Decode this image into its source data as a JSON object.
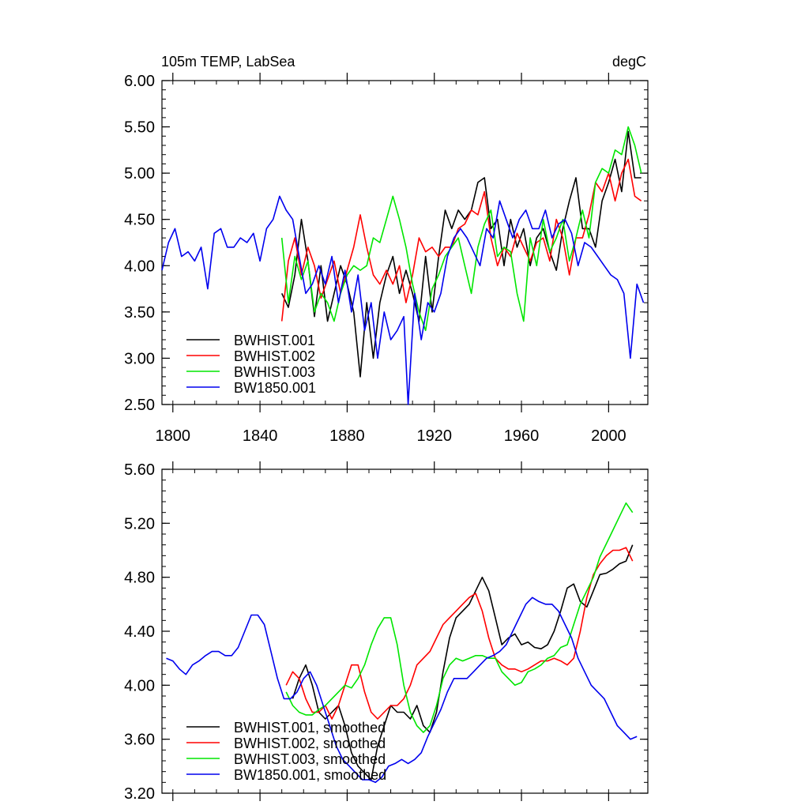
{
  "figure_title": "105m TEMP, LabSea",
  "units": "degC",
  "colors": {
    "BWHIST.001": "#000000",
    "BWHIST.002": "#ff0000",
    "BWHIST.003": "#00e600",
    "BW1850.001": "#0000ee"
  },
  "chart_data": [
    {
      "type": "line",
      "title": "105m TEMP, LabSea",
      "units": "degC",
      "xlabel": "",
      "ylabel": "",
      "xlim": [
        1795,
        2018
      ],
      "ylim": [
        2.5,
        6.0
      ],
      "x_ticks": [
        1800,
        1840,
        1880,
        1920,
        1960,
        2000
      ],
      "x_tick_labels": [
        "1800",
        "1840",
        "1880",
        "1920",
        "1960",
        "2000"
      ],
      "y_ticks": [
        2.5,
        3.0,
        3.5,
        4.0,
        4.5,
        5.0,
        5.5,
        6.0
      ],
      "y_tick_labels": [
        "2.50",
        "3.00",
        "3.50",
        "4.00",
        "4.50",
        "5.00",
        "5.50",
        "6.00"
      ],
      "legend_position": "bottom-left",
      "series": [
        {
          "name": "BWHIST.001",
          "label": "BWHIST.001",
          "x": [
            1850,
            1853,
            1856,
            1859,
            1862,
            1865,
            1868,
            1871,
            1874,
            1877,
            1880,
            1883,
            1886,
            1889,
            1892,
            1895,
            1898,
            1901,
            1904,
            1907,
            1910,
            1913,
            1916,
            1919,
            1922,
            1925,
            1928,
            1931,
            1934,
            1937,
            1940,
            1943,
            1946,
            1949,
            1952,
            1955,
            1958,
            1961,
            1964,
            1967,
            1970,
            1973,
            1976,
            1979,
            1982,
            1985,
            1988,
            1991,
            1994,
            1997,
            2000,
            2003,
            2006,
            2009,
            2012,
            2015
          ],
          "y": [
            3.7,
            3.55,
            3.9,
            4.5,
            4.05,
            3.45,
            4.0,
            3.4,
            3.7,
            4.0,
            3.8,
            3.5,
            2.8,
            3.6,
            3.0,
            3.6,
            3.9,
            4.1,
            3.7,
            3.95,
            3.7,
            3.4,
            4.1,
            3.5,
            4.1,
            4.6,
            4.4,
            4.6,
            4.5,
            4.6,
            4.9,
            4.95,
            4.4,
            4.5,
            4.0,
            4.5,
            4.2,
            4.4,
            4.0,
            4.3,
            4.4,
            4.15,
            3.95,
            4.4,
            4.7,
            4.95,
            4.4,
            4.4,
            4.2,
            4.7,
            4.9,
            5.15,
            4.8,
            5.45,
            4.95,
            4.95
          ]
        },
        {
          "name": "BWHIST.002",
          "label": "BWHIST.002",
          "x": [
            1850,
            1853,
            1856,
            1859,
            1862,
            1865,
            1868,
            1871,
            1874,
            1877,
            1880,
            1883,
            1886,
            1889,
            1892,
            1895,
            1898,
            1901,
            1904,
            1907,
            1910,
            1913,
            1916,
            1919,
            1922,
            1925,
            1928,
            1931,
            1934,
            1937,
            1940,
            1943,
            1946,
            1949,
            1952,
            1955,
            1958,
            1961,
            1964,
            1967,
            1970,
            1973,
            1976,
            1979,
            1982,
            1985,
            1988,
            1991,
            1994,
            1997,
            2000,
            2003,
            2006,
            2009,
            2012,
            2015
          ],
          "y": [
            3.4,
            4.05,
            4.3,
            3.9,
            4.2,
            4.0,
            3.65,
            3.85,
            4.05,
            3.7,
            3.95,
            4.2,
            4.55,
            4.2,
            3.9,
            3.8,
            3.95,
            3.8,
            4.0,
            3.6,
            3.9,
            4.3,
            4.15,
            4.2,
            4.1,
            4.2,
            4.2,
            4.4,
            4.45,
            4.6,
            4.55,
            4.8,
            4.3,
            4.0,
            4.2,
            4.1,
            4.35,
            4.2,
            4.05,
            4.25,
            4.3,
            4.05,
            4.5,
            4.3,
            3.9,
            4.3,
            4.3,
            4.55,
            4.9,
            4.8,
            5.0,
            4.7,
            5.0,
            5.15,
            4.75,
            4.7
          ]
        },
        {
          "name": "BWHIST.003",
          "label": "BWHIST.003",
          "x": [
            1850,
            1853,
            1856,
            1859,
            1862,
            1865,
            1868,
            1871,
            1874,
            1877,
            1880,
            1883,
            1886,
            1889,
            1892,
            1895,
            1898,
            1901,
            1904,
            1907,
            1910,
            1913,
            1916,
            1919,
            1922,
            1925,
            1928,
            1931,
            1934,
            1937,
            1940,
            1943,
            1946,
            1949,
            1952,
            1955,
            1958,
            1961,
            1964,
            1967,
            1970,
            1973,
            1976,
            1979,
            1982,
            1985,
            1988,
            1991,
            1994,
            1997,
            2000,
            2003,
            2006,
            2009,
            2012,
            2015
          ],
          "y": [
            4.3,
            3.6,
            4.1,
            3.85,
            4.05,
            3.5,
            3.7,
            3.6,
            3.4,
            3.7,
            3.9,
            4.0,
            3.95,
            4.0,
            4.3,
            4.25,
            4.5,
            4.75,
            4.5,
            4.2,
            3.8,
            3.5,
            3.3,
            3.75,
            3.9,
            4.1,
            4.2,
            4.3,
            4.0,
            3.7,
            4.2,
            4.45,
            4.6,
            4.1,
            4.2,
            4.15,
            3.7,
            3.4,
            4.3,
            4.0,
            4.5,
            4.15,
            4.3,
            4.5,
            4.05,
            4.3,
            4.6,
            4.3,
            4.9,
            5.05,
            5.0,
            5.25,
            5.2,
            5.5,
            5.3,
            5.0
          ]
        },
        {
          "name": "BW1850.001",
          "label": "BW1850.001",
          "x": [
            1795,
            1798,
            1801,
            1804,
            1807,
            1810,
            1813,
            1816,
            1819,
            1822,
            1825,
            1828,
            1831,
            1834,
            1837,
            1840,
            1843,
            1846,
            1849,
            1852,
            1855,
            1858,
            1861,
            1864,
            1867,
            1870,
            1873,
            1876,
            1879,
            1882,
            1885,
            1888,
            1891,
            1894,
            1897,
            1900,
            1903,
            1906,
            1908,
            1911,
            1914,
            1917,
            1920,
            1923,
            1926,
            1929,
            1932,
            1935,
            1938,
            1941,
            1944,
            1947,
            1950,
            1953,
            1956,
            1959,
            1962,
            1965,
            1968,
            1971,
            1974,
            1977,
            1980,
            1983,
            1986,
            1989,
            1992,
            1995,
            1998,
            2001,
            2004,
            2007,
            2010,
            2013,
            2016
          ],
          "y": [
            3.95,
            4.25,
            4.4,
            4.1,
            4.15,
            4.05,
            4.2,
            3.75,
            4.35,
            4.4,
            4.2,
            4.2,
            4.3,
            4.25,
            4.35,
            4.05,
            4.4,
            4.5,
            4.75,
            4.6,
            4.5,
            4.1,
            3.7,
            3.8,
            4.0,
            3.8,
            4.1,
            3.6,
            3.95,
            3.5,
            3.9,
            3.3,
            3.6,
            3.0,
            3.5,
            3.2,
            3.3,
            3.45,
            2.5,
            3.7,
            3.2,
            3.6,
            3.5,
            3.7,
            4.1,
            4.3,
            4.4,
            4.3,
            4.15,
            4.0,
            4.4,
            4.3,
            4.7,
            4.5,
            4.3,
            4.5,
            4.6,
            4.4,
            4.4,
            4.6,
            4.3,
            4.45,
            4.5,
            4.35,
            4.0,
            4.25,
            4.2,
            4.1,
            4.0,
            3.9,
            3.85,
            3.7,
            3.0,
            3.8,
            3.6
          ]
        }
      ]
    },
    {
      "type": "line",
      "title": "",
      "xlabel": "",
      "ylabel": "",
      "xlim": [
        1795,
        2018
      ],
      "ylim": [
        3.2,
        5.6
      ],
      "x_ticks": [
        1800,
        1840,
        1880,
        1920,
        1960,
        2000
      ],
      "x_tick_labels": [],
      "y_ticks": [
        3.2,
        3.6,
        4.0,
        4.4,
        4.8,
        5.2,
        5.6
      ],
      "y_tick_labels": [
        "3.20",
        "3.60",
        "4.00",
        "4.40",
        "4.80",
        "5.20",
        "5.60"
      ],
      "legend_position": "bottom-left",
      "series": [
        {
          "name": "BWHIST.001",
          "label": "BWHIST.001, smoothed",
          "x": [
            1855,
            1858,
            1861,
            1864,
            1867,
            1870,
            1873,
            1876,
            1879,
            1882,
            1885,
            1888,
            1891,
            1894,
            1897,
            1900,
            1903,
            1906,
            1909,
            1912,
            1915,
            1918,
            1921,
            1924,
            1927,
            1930,
            1933,
            1936,
            1939,
            1942,
            1945,
            1948,
            1951,
            1954,
            1957,
            1960,
            1963,
            1966,
            1969,
            1972,
            1975,
            1978,
            1981,
            1984,
            1987,
            1990,
            1993,
            1996,
            1999,
            2002,
            2005,
            2008,
            2011
          ],
          "y": [
            3.9,
            4.05,
            4.15,
            4.0,
            3.8,
            3.75,
            3.8,
            3.85,
            3.7,
            3.5,
            3.4,
            3.35,
            3.3,
            3.55,
            3.7,
            3.85,
            3.8,
            3.8,
            3.75,
            3.85,
            3.7,
            3.65,
            3.8,
            4.1,
            4.35,
            4.5,
            4.55,
            4.6,
            4.7,
            4.8,
            4.7,
            4.5,
            4.3,
            4.35,
            4.38,
            4.3,
            4.32,
            4.28,
            4.27,
            4.3,
            4.4,
            4.55,
            4.72,
            4.75,
            4.62,
            4.58,
            4.7,
            4.82,
            4.83,
            4.86,
            4.9,
            4.92,
            5.04
          ]
        },
        {
          "name": "BWHIST.002",
          "label": "BWHIST.002, smoothed",
          "x": [
            1852,
            1855,
            1858,
            1861,
            1864,
            1867,
            1870,
            1873,
            1876,
            1879,
            1882,
            1885,
            1888,
            1891,
            1894,
            1897,
            1900,
            1903,
            1906,
            1909,
            1912,
            1915,
            1918,
            1921,
            1924,
            1927,
            1930,
            1933,
            1936,
            1939,
            1942,
            1945,
            1948,
            1951,
            1954,
            1957,
            1960,
            1963,
            1966,
            1969,
            1972,
            1975,
            1978,
            1981,
            1984,
            1987,
            1990,
            1993,
            1996,
            1999,
            2002,
            2005,
            2008,
            2011
          ],
          "y": [
            4.0,
            4.1,
            4.05,
            3.9,
            3.8,
            3.8,
            3.85,
            3.75,
            3.85,
            4.0,
            4.15,
            4.15,
            3.95,
            3.8,
            3.75,
            3.8,
            3.85,
            3.85,
            3.9,
            4.0,
            4.15,
            4.2,
            4.25,
            4.35,
            4.45,
            4.5,
            4.55,
            4.6,
            4.65,
            4.68,
            4.55,
            4.35,
            4.2,
            4.15,
            4.12,
            4.12,
            4.1,
            4.12,
            4.15,
            4.18,
            4.18,
            4.2,
            4.18,
            4.15,
            4.2,
            4.4,
            4.65,
            4.82,
            4.9,
            4.96,
            5.0,
            5.0,
            5.02,
            4.92
          ]
        },
        {
          "name": "BWHIST.003",
          "label": "BWHIST.003, smoothed",
          "x": [
            1852,
            1855,
            1858,
            1861,
            1864,
            1867,
            1870,
            1873,
            1876,
            1879,
            1882,
            1885,
            1888,
            1891,
            1894,
            1897,
            1900,
            1903,
            1906,
            1909,
            1912,
            1915,
            1918,
            1921,
            1924,
            1927,
            1930,
            1933,
            1936,
            1939,
            1942,
            1945,
            1948,
            1951,
            1954,
            1957,
            1960,
            1963,
            1966,
            1969,
            1972,
            1975,
            1978,
            1981,
            1984,
            1987,
            1990,
            1993,
            1996,
            1999,
            2002,
            2005,
            2008,
            2011
          ],
          "y": [
            3.95,
            3.85,
            3.8,
            3.78,
            3.78,
            3.82,
            3.85,
            3.9,
            3.95,
            4.0,
            3.98,
            4.05,
            4.15,
            4.3,
            4.42,
            4.5,
            4.5,
            4.3,
            4.0,
            3.8,
            3.7,
            3.65,
            3.7,
            3.85,
            4.05,
            4.15,
            4.2,
            4.18,
            4.2,
            4.22,
            4.22,
            4.2,
            4.2,
            4.1,
            4.05,
            4.0,
            4.02,
            4.1,
            4.12,
            4.15,
            4.2,
            4.22,
            4.28,
            4.3,
            4.45,
            4.6,
            4.7,
            4.8,
            4.95,
            5.05,
            5.15,
            5.25,
            5.35,
            5.28
          ]
        },
        {
          "name": "BW1850.001",
          "label": "BW1850.001, smoothed",
          "x": [
            1797,
            1800,
            1803,
            1806,
            1809,
            1812,
            1815,
            1818,
            1821,
            1824,
            1827,
            1830,
            1833,
            1836,
            1839,
            1842,
            1845,
            1848,
            1851,
            1854,
            1857,
            1860,
            1863,
            1866,
            1869,
            1872,
            1875,
            1878,
            1881,
            1884,
            1887,
            1890,
            1893,
            1896,
            1899,
            1902,
            1905,
            1908,
            1911,
            1914,
            1917,
            1920,
            1923,
            1926,
            1929,
            1932,
            1935,
            1938,
            1941,
            1944,
            1947,
            1950,
            1953,
            1956,
            1959,
            1962,
            1965,
            1968,
            1971,
            1974,
            1977,
            1980,
            1983,
            1986,
            1989,
            1992,
            1995,
            1998,
            2001,
            2004,
            2007,
            2010,
            2013
          ],
          "y": [
            4.2,
            4.18,
            4.12,
            4.08,
            4.15,
            4.18,
            4.22,
            4.25,
            4.25,
            4.22,
            4.22,
            4.28,
            4.4,
            4.52,
            4.52,
            4.45,
            4.25,
            4.05,
            3.9,
            3.9,
            3.95,
            4.05,
            4.1,
            4.0,
            3.85,
            3.7,
            3.55,
            3.45,
            3.4,
            3.35,
            3.3,
            3.3,
            3.28,
            3.32,
            3.4,
            3.42,
            3.45,
            3.42,
            3.45,
            3.5,
            3.62,
            3.72,
            3.82,
            3.95,
            4.05,
            4.05,
            4.05,
            4.1,
            4.15,
            4.2,
            4.22,
            4.25,
            4.3,
            4.4,
            4.5,
            4.6,
            4.65,
            4.62,
            4.6,
            4.6,
            4.55,
            4.45,
            4.35,
            4.2,
            4.1,
            4.0,
            3.95,
            3.9,
            3.8,
            3.7,
            3.65,
            3.6,
            3.62
          ]
        }
      ]
    }
  ]
}
